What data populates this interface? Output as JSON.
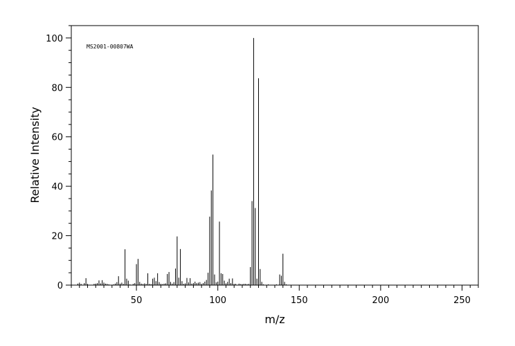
{
  "chart_data": {
    "type": "bar",
    "annotation": "MS2001-00807WA",
    "xlabel": "m/z",
    "ylabel": "Relative Intensity",
    "xlim": [
      10,
      260
    ],
    "ylim": [
      0,
      105
    ],
    "x_ticks": [
      50,
      100,
      150,
      200,
      250
    ],
    "y_ticks": [
      0,
      20,
      40,
      60,
      80,
      100
    ],
    "x_minor_step": 5,
    "y_minor_step": 5,
    "grid": false,
    "series": [
      {
        "peaks": [
          [
            14,
            0.6
          ],
          [
            15,
            1.0
          ],
          [
            16,
            0.5
          ],
          [
            18,
            0.8
          ],
          [
            19,
            2.8
          ],
          [
            20,
            0.5
          ],
          [
            24,
            0.5
          ],
          [
            25,
            0.6
          ],
          [
            26,
            0.8
          ],
          [
            27,
            1.9
          ],
          [
            28,
            0.7
          ],
          [
            29,
            2.0
          ],
          [
            30,
            1.0
          ],
          [
            31,
            0.6
          ],
          [
            32,
            0.5
          ],
          [
            33,
            0.3
          ],
          [
            36,
            0.3
          ],
          [
            37,
            0.6
          ],
          [
            38,
            1.2
          ],
          [
            39,
            3.6
          ],
          [
            40,
            0.6
          ],
          [
            41,
            1.0
          ],
          [
            42,
            0.5
          ],
          [
            43,
            14.5
          ],
          [
            44,
            2.6
          ],
          [
            45,
            1.8
          ],
          [
            46,
            0.3
          ],
          [
            48,
            0.5
          ],
          [
            49,
            0.8
          ],
          [
            50,
            8.5
          ],
          [
            51,
            10.6
          ],
          [
            52,
            1.3
          ],
          [
            53,
            0.6
          ],
          [
            54,
            0.4
          ],
          [
            55,
            0.7
          ],
          [
            56,
            0.5
          ],
          [
            57,
            4.8
          ],
          [
            58,
            0.5
          ],
          [
            59,
            0.4
          ],
          [
            60,
            2.6
          ],
          [
            61,
            3.0
          ],
          [
            62,
            1.6
          ],
          [
            63,
            4.8
          ],
          [
            64,
            1.2
          ],
          [
            65,
            0.5
          ],
          [
            66,
            0.4
          ],
          [
            67,
            0.6
          ],
          [
            68,
            0.7
          ],
          [
            69,
            4.5
          ],
          [
            70,
            5.3
          ],
          [
            71,
            1.3
          ],
          [
            72,
            0.6
          ],
          [
            73,
            1.2
          ],
          [
            74,
            6.7
          ],
          [
            75,
            19.7
          ],
          [
            76,
            3.0
          ],
          [
            77,
            14.6
          ],
          [
            78,
            1.6
          ],
          [
            79,
            0.5
          ],
          [
            80,
            0.7
          ],
          [
            81,
            2.9
          ],
          [
            82,
            1.1
          ],
          [
            83,
            2.8
          ],
          [
            84,
            0.6
          ],
          [
            85,
            0.8
          ],
          [
            86,
            1.4
          ],
          [
            87,
            0.8
          ],
          [
            88,
            1.0
          ],
          [
            89,
            1.2
          ],
          [
            90,
            0.5
          ],
          [
            91,
            0.8
          ],
          [
            92,
            1.4
          ],
          [
            93,
            2.1
          ],
          [
            94,
            5.0
          ],
          [
            95,
            27.7
          ],
          [
            96,
            38.3
          ],
          [
            97,
            52.8
          ],
          [
            98,
            4.3
          ],
          [
            99,
            1.1
          ],
          [
            100,
            1.4
          ],
          [
            101,
            25.7
          ],
          [
            102,
            4.8
          ],
          [
            103,
            4.5
          ],
          [
            104,
            1.8
          ],
          [
            105,
            0.7
          ],
          [
            106,
            1.3
          ],
          [
            107,
            2.6
          ],
          [
            108,
            0.8
          ],
          [
            109,
            2.7
          ],
          [
            110,
            0.5
          ],
          [
            111,
            0.5
          ],
          [
            113,
            0.6
          ],
          [
            114,
            0.4
          ],
          [
            115,
            0.4
          ],
          [
            116,
            0.5
          ],
          [
            117,
            0.5
          ],
          [
            118,
            0.4
          ],
          [
            119,
            0.5
          ],
          [
            120,
            7.3
          ],
          [
            121,
            34.0
          ],
          [
            122,
            100.0
          ],
          [
            123,
            31.2
          ],
          [
            124,
            2.6
          ],
          [
            125,
            83.7
          ],
          [
            126,
            6.5
          ],
          [
            127,
            1.3
          ],
          [
            128,
            0.3
          ],
          [
            131,
            0.3
          ],
          [
            136,
            0.3
          ],
          [
            138,
            4.3
          ],
          [
            139,
            3.8
          ],
          [
            140,
            12.7
          ],
          [
            141,
            1.3
          ],
          [
            142,
            0.3
          ]
        ]
      }
    ]
  }
}
